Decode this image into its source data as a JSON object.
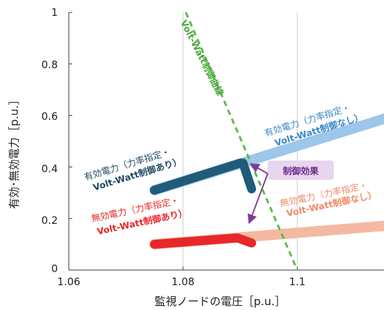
{
  "chart_data": {
    "type": "line",
    "xlabel": "監視ノードの電圧［p.u.］",
    "ylabel": "有効･無効電力［p.u.］",
    "xlim": [
      1.06,
      1.12
    ],
    "ylim": [
      0,
      1
    ],
    "x_ticks": [
      "1.06",
      "1.08",
      "1.1"
    ],
    "y_ticks": [
      "0",
      "0.2",
      "0.4",
      "0.6",
      "0.8",
      "1"
    ],
    "grid": "vertical",
    "colors": {
      "active_with": "#1f5c78",
      "active_without": "#9cc6ea",
      "reactive_with": "#e8272a",
      "reactive_without": "#f5b9a2",
      "curve": "#5cb947",
      "effect": "#7d3c98"
    },
    "series": [
      {
        "key": "active_without",
        "x": [
          1.075,
          1.12
        ],
        "y": [
          0.31,
          0.62
        ]
      },
      {
        "key": "reactive_without",
        "x": [
          1.075,
          1.12
        ],
        "y": [
          0.1,
          0.18
        ]
      },
      {
        "key": "active_with",
        "x": [
          1.075,
          1.09,
          1.0905,
          1.092
        ],
        "y": [
          0.31,
          0.415,
          0.415,
          0.315
        ]
      },
      {
        "key": "reactive_with",
        "x": [
          1.075,
          1.0895,
          1.092
        ],
        "y": [
          0.1,
          0.125,
          0.105
        ]
      },
      {
        "key": "curve",
        "x": [
          1.0805,
          1.1
        ],
        "y": [
          1.0,
          0.0
        ]
      }
    ],
    "annotations": {
      "curve_label": "Volt-Watt制御曲線",
      "active_without_line1": "有効電力（力率指定・",
      "active_without_line2": "Volt-Watt制御なし）",
      "active_with_line1": "有効電力（力率指定・",
      "active_with_line2": "Volt-Watt制御あり）",
      "reactive_with_line1": "無効電力（力率指定・",
      "reactive_with_line2": "Volt-Watt制御あり）",
      "reactive_without_line1": "無効電力（力率指定・",
      "reactive_without_line2": "Volt-Watt制御なし）",
      "effect_label": "制御効果"
    }
  }
}
